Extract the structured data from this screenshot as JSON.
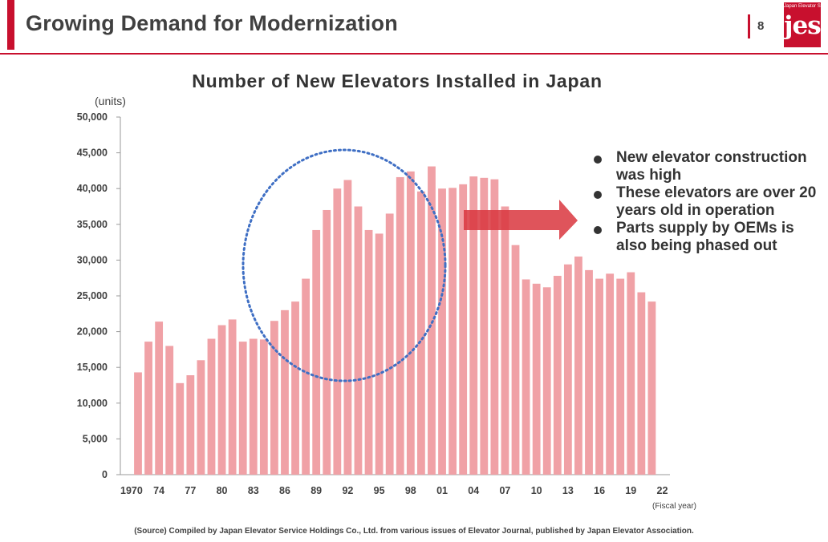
{
  "header": {
    "title": "Growing Demand for Modernization",
    "page_number": "8"
  },
  "logo": {
    "small_text": "Japan Elevator Service",
    "big_text": "jes"
  },
  "chart_data": {
    "type": "bar",
    "title": "Number of New Elevators Installed in Japan",
    "ylabel": "(units)",
    "xlabel": "(Fiscal year)",
    "ylim": [
      0,
      50000
    ],
    "yticks": [
      "0",
      "5,000",
      "10,000",
      "15,000",
      "20,000",
      "25,000",
      "30,000",
      "35,000",
      "40,000",
      "45,000",
      "50,000"
    ],
    "xtick_labels": [
      "1970",
      "74",
      "77",
      "80",
      "83",
      "86",
      "89",
      "92",
      "95",
      "98",
      "01",
      "04",
      "07",
      "10",
      "13",
      "16",
      "19",
      "22"
    ],
    "categories": [
      "1971",
      "1972",
      "1973",
      "1974",
      "1975",
      "1976",
      "1977",
      "1978",
      "1979",
      "1980",
      "1981",
      "1982",
      "1983",
      "1984",
      "1985",
      "1986",
      "1987",
      "1988",
      "1989",
      "1990",
      "1991",
      "1992",
      "1993",
      "1994",
      "1995",
      "1996",
      "1997",
      "1998",
      "1999",
      "2000",
      "2001",
      "2002",
      "2003",
      "2004",
      "2005",
      "2006",
      "2007",
      "2008",
      "2009",
      "2010",
      "2011",
      "2012",
      "2013",
      "2014",
      "2015",
      "2016",
      "2017",
      "2018",
      "2019",
      "2020",
      "2021",
      "2022"
    ],
    "values": [
      14300,
      18600,
      21400,
      18000,
      12800,
      13900,
      16000,
      19000,
      20900,
      21700,
      18600,
      19000,
      18900,
      21500,
      23000,
      24200,
      27400,
      34200,
      37000,
      40000,
      41200,
      37500,
      34200,
      33700,
      36500,
      41600,
      42400,
      39600,
      43100,
      40000,
      40100,
      40600,
      41700,
      41500,
      41300,
      37500,
      32100,
      27300,
      26700,
      26200,
      27800,
      29400,
      30500,
      28600,
      27400,
      28100,
      27400,
      28300,
      25500,
      24200,
      0,
      0
    ],
    "bar_color": "#f0a1a6",
    "gridlines": false
  },
  "notes": [
    "New elevator construction was high",
    "These elevators are over 20 years old in operation",
    "Parts supply by OEMs is also being phased out"
  ],
  "colors": {
    "accent": "#c8102e",
    "arrow": "#d9363e",
    "ellipse": "#3f6fc4"
  },
  "source": "(Source) Compiled by Japan Elevator Service Holdings Co., Ltd. from various issues of Elevator Journal, published by Japan Elevator Association."
}
